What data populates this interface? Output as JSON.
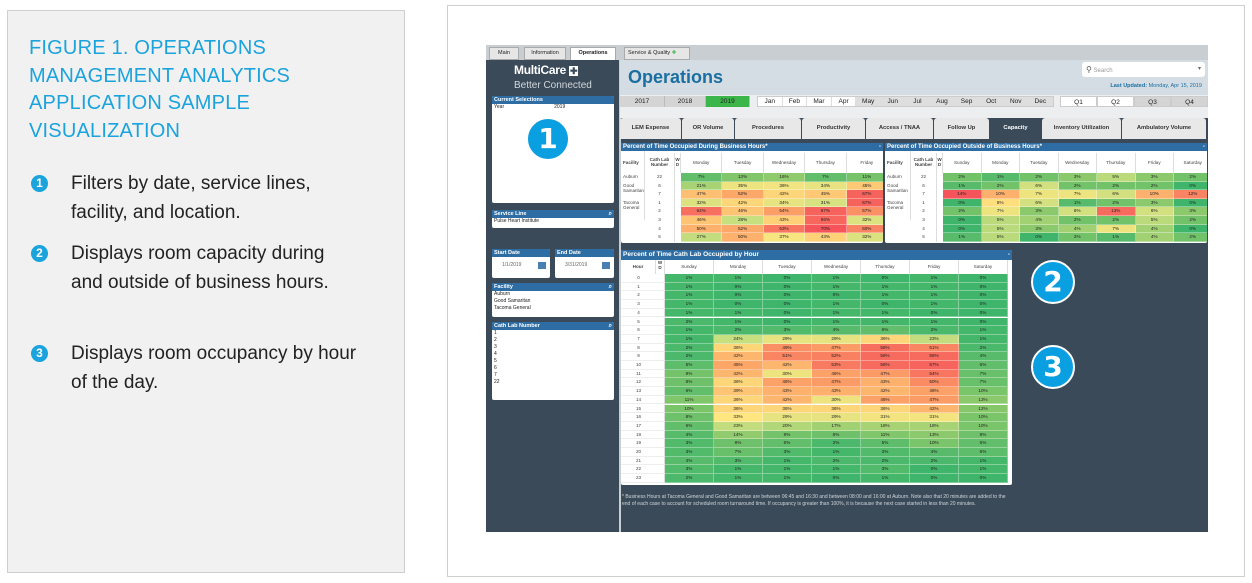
{
  "caption": {
    "title": "FIGURE 1. OPERATIONS MANAGEMENT ANALYTICS APPLICATION SAMPLE VISUALIZATION",
    "bullets": [
      {
        "num": "1",
        "text": "Filters by date, service lines, facility, and location."
      },
      {
        "num": "2",
        "text": "Displays room capacity during and outside of business hours."
      },
      {
        "num": "3",
        "text": "Displays room occupancy by hour of the day."
      }
    ]
  },
  "app": {
    "top_tabs": [
      "Main",
      "Information",
      "Operations",
      "Service & Quality"
    ],
    "logo": {
      "name": "MultiCare",
      "tagline": "Better Connected"
    },
    "page_title": "Operations",
    "search_placeholder": "Search",
    "last_updated_label": "Last Updated:",
    "last_updated_value": "Monday, Apr 15, 2019",
    "years": [
      "2017",
      "2018",
      "2019"
    ],
    "selected_year": "2019",
    "months": [
      "Jan",
      "Feb",
      "Mar",
      "Apr",
      "May",
      "Jun",
      "Jul",
      "Aug",
      "Sep",
      "Oct",
      "Nov",
      "Dec"
    ],
    "quarters": [
      "Q1",
      "Q2",
      "Q3",
      "Q4"
    ],
    "tabs": [
      "LEM Expense",
      "OR Volume",
      "Procedures",
      "Productivity",
      "Access / TNAA",
      "Follow Up",
      "Capacity",
      "Inventory Utilization",
      "Ambulatory Volume"
    ],
    "active_tab": "Capacity",
    "sidebar": {
      "current_selections": {
        "title": "Current Selections",
        "items": [
          "Year",
          "2019"
        ]
      },
      "service_line": {
        "title": "Service Line",
        "value": "Pulse Heart Institute"
      },
      "start_date": {
        "title": "Start Date",
        "value": "1/1/2019"
      },
      "end_date": {
        "title": "End Date",
        "value": "3/31/2019"
      },
      "facility": {
        "title": "Facility",
        "items": [
          "Auburn",
          "Good Samaritan",
          "Tacoma General"
        ]
      },
      "cath_lab": {
        "title": "Cath Lab Number",
        "items": [
          "1",
          "2",
          "3",
          "4",
          "5",
          "6",
          "7",
          "22"
        ]
      }
    },
    "business": {
      "title": "Percent of Time Occupied During Business Hours*",
      "col_facility": "Facility",
      "col_lab": "Cath Lab Number",
      "col_w": "W D",
      "days": [
        "Monday",
        "Tuesday",
        "Wednesday",
        "Thursday",
        "Friday"
      ],
      "groups": [
        {
          "facility": "Auburn",
          "rows": [
            1
          ]
        },
        {
          "facility": "Good Samaritan",
          "rows": [
            2
          ]
        },
        {
          "facility": "Tacoma General",
          "rows": [
            3
          ]
        }
      ],
      "rows": [
        {
          "facility": "Auburn",
          "lab": "22",
          "values": [
            "7%",
            "13%",
            "16%",
            "7%",
            "11%"
          ]
        },
        {
          "facility": "Good Samaritan",
          "lab": "6",
          "values": [
            "21%",
            "35%",
            "36%",
            "34%",
            "45%"
          ]
        },
        {
          "facility": "",
          "lab": "7",
          "values": [
            "47%",
            "52%",
            "42%",
            "45%",
            "67%"
          ]
        },
        {
          "facility": "Tacoma General",
          "lab": "1",
          "values": [
            "32%",
            "42%",
            "34%",
            "31%",
            "67%"
          ]
        },
        {
          "facility": "",
          "lab": "2",
          "values": [
            "64%",
            "46%",
            "54%",
            "67%",
            "57%"
          ]
        },
        {
          "facility": "",
          "lab": "3",
          "values": [
            "46%",
            "28%",
            "43%",
            "66%",
            "32%"
          ]
        },
        {
          "facility": "",
          "lab": "4",
          "values": [
            "50%",
            "52%",
            "63%",
            "70%",
            "60%"
          ]
        },
        {
          "facility": "",
          "lab": "5",
          "values": [
            "27%",
            "50%",
            "37%",
            "43%",
            "32%"
          ]
        }
      ]
    },
    "outside": {
      "title": "Percent of Time Occupied Outside of Business Hours*",
      "col_facility": "Facility",
      "col_lab": "Cath Lab Number",
      "col_w": "W D",
      "days": [
        "Sunday",
        "Monday",
        "Tuesday",
        "Wednesday",
        "Thursday",
        "Friday",
        "Saturday"
      ],
      "rows": [
        {
          "facility": "Auburn",
          "lab": "22",
          "values": [
            "2%",
            "1%",
            "2%",
            "3%",
            "5%",
            "3%",
            "2%"
          ]
        },
        {
          "facility": "Good Samaritan",
          "lab": "6",
          "values": [
            "1%",
            "2%",
            "6%",
            "2%",
            "2%",
            "2%",
            "0%"
          ]
        },
        {
          "facility": "",
          "lab": "7",
          "values": [
            "14%",
            "10%",
            "7%",
            "7%",
            "6%",
            "10%",
            "12%"
          ]
        },
        {
          "facility": "Tacoma General",
          "lab": "1",
          "values": [
            "0%",
            "8%",
            "6%",
            "1%",
            "2%",
            "3%",
            "0%"
          ]
        },
        {
          "facility": "",
          "lab": "2",
          "values": [
            "2%",
            "7%",
            "3%",
            "6%",
            "13%",
            "6%",
            "3%"
          ]
        },
        {
          "facility": "",
          "lab": "3",
          "values": [
            "0%",
            "5%",
            "4%",
            "2%",
            "2%",
            "5%",
            "2%"
          ]
        },
        {
          "facility": "",
          "lab": "4",
          "values": [
            "0%",
            "5%",
            "3%",
            "4%",
            "7%",
            "4%",
            "0%"
          ]
        },
        {
          "facility": "",
          "lab": "5",
          "values": [
            "1%",
            "5%",
            "0%",
            "2%",
            "1%",
            "4%",
            "2%"
          ]
        }
      ]
    },
    "hourly": {
      "title": "Percent of Time Cath Lab Occupied by Hour",
      "col_hour": "Hour",
      "col_w": "W D",
      "days": [
        "Sunday",
        "Monday",
        "Tuesday",
        "Wednesday",
        "Thursday",
        "Friday",
        "Saturday"
      ],
      "rows": [
        {
          "hour": "0",
          "values": [
            "1%",
            "1%",
            "0%",
            "1%",
            "0%",
            "1%",
            "0%"
          ]
        },
        {
          "hour": "1",
          "values": [
            "1%",
            "0%",
            "0%",
            "1%",
            "1%",
            "1%",
            "0%"
          ]
        },
        {
          "hour": "2",
          "values": [
            "1%",
            "0%",
            "0%",
            "0%",
            "1%",
            "1%",
            "0%"
          ]
        },
        {
          "hour": "3",
          "values": [
            "1%",
            "0%",
            "0%",
            "1%",
            "0%",
            "1%",
            "0%"
          ]
        },
        {
          "hour": "4",
          "values": [
            "1%",
            "1%",
            "0%",
            "1%",
            "1%",
            "0%",
            "0%"
          ]
        },
        {
          "hour": "5",
          "values": [
            "2%",
            "1%",
            "0%",
            "1%",
            "1%",
            "1%",
            "0%"
          ]
        },
        {
          "hour": "6",
          "values": [
            "1%",
            "2%",
            "3%",
            "4%",
            "6%",
            "2%",
            "1%"
          ]
        },
        {
          "hour": "7",
          "values": [
            "1%",
            "24%",
            "29%",
            "29%",
            "36%",
            "23%",
            "1%"
          ]
        },
        {
          "hour": "8",
          "values": [
            "2%",
            "36%",
            "49%",
            "47%",
            "55%",
            "51%",
            "2%"
          ]
        },
        {
          "hour": "9",
          "values": [
            "2%",
            "42%",
            "51%",
            "52%",
            "56%",
            "56%",
            "4%"
          ]
        },
        {
          "hour": "10",
          "values": [
            "5%",
            "45%",
            "42%",
            "53%",
            "56%",
            "57%",
            "6%"
          ]
        },
        {
          "hour": "11",
          "values": [
            "9%",
            "42%",
            "30%",
            "46%",
            "47%",
            "54%",
            "7%"
          ]
        },
        {
          "hour": "12",
          "values": [
            "8%",
            "36%",
            "46%",
            "47%",
            "43%",
            "50%",
            "7%"
          ]
        },
        {
          "hour": "13",
          "values": [
            "6%",
            "39%",
            "43%",
            "43%",
            "42%",
            "46%",
            "10%"
          ]
        },
        {
          "hour": "14",
          "values": [
            "11%",
            "36%",
            "42%",
            "30%",
            "46%",
            "47%",
            "13%"
          ]
        },
        {
          "hour": "15",
          "values": [
            "10%",
            "36%",
            "36%",
            "36%",
            "36%",
            "42%",
            "12%"
          ]
        },
        {
          "hour": "16",
          "values": [
            "8%",
            "33%",
            "29%",
            "29%",
            "31%",
            "31%",
            "10%"
          ]
        },
        {
          "hour": "17",
          "values": [
            "6%",
            "23%",
            "20%",
            "17%",
            "18%",
            "18%",
            "10%"
          ]
        },
        {
          "hour": "18",
          "values": [
            "4%",
            "14%",
            "9%",
            "8%",
            "11%",
            "13%",
            "8%"
          ]
        },
        {
          "hour": "19",
          "values": [
            "3%",
            "8%",
            "6%",
            "2%",
            "5%",
            "10%",
            "6%"
          ]
        },
        {
          "hour": "20",
          "values": [
            "3%",
            "7%",
            "3%",
            "1%",
            "3%",
            "4%",
            "5%"
          ]
        },
        {
          "hour": "21",
          "values": [
            "4%",
            "3%",
            "1%",
            "2%",
            "2%",
            "2%",
            "1%"
          ]
        },
        {
          "hour": "22",
          "values": [
            "3%",
            "1%",
            "1%",
            "1%",
            "3%",
            "0%",
            "1%"
          ]
        },
        {
          "hour": "23",
          "values": [
            "2%",
            "1%",
            "1%",
            "0%",
            "1%",
            "0%",
            "0%"
          ]
        }
      ]
    },
    "footnote": "* Business Hours at Tacoma General and Good Samaritan are between 06:45 and 16:30 and between 08:00 and 16:00 at Auburn. Note also that 20 minutes are added to the end of each case to account for scheduled room turnaround time. If occupancy is greater than 100%, it is because the next case started in less than 20 minutes.",
    "colors": {
      "accent": "#1aa3dc",
      "header_blue": "#2d6da3",
      "selected_green": "#3cb54a",
      "low": "#3fb56b",
      "mid": "#ffe680",
      "high": "#f5545a"
    }
  }
}
